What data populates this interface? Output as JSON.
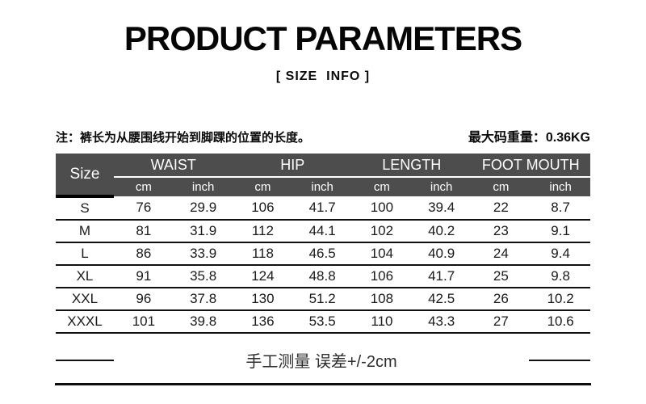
{
  "page": {
    "title": "PRODUCT PARAMETERS",
    "subtitle": "[ SIZE  INFO ]"
  },
  "notes": {
    "measure_note": "注：裤长为从腰围线开始到脚踝的位置的长度。",
    "weight_note": "最大码重量：0.36KG",
    "footer_note": "手工测量 误差+/-2cm"
  },
  "size_table": {
    "size_col_label": "Size",
    "groups": [
      "WAIST",
      "HIP",
      "LENGTH",
      "FOOT MOUTH"
    ],
    "unit_labels": [
      "cm",
      "inch",
      "cm",
      "inch",
      "cm",
      "inch",
      "cm",
      "inch"
    ],
    "rows": [
      {
        "size": "S",
        "values": [
          "76",
          "29.9",
          "106",
          "41.7",
          "100",
          "39.4",
          "22",
          "8.7"
        ]
      },
      {
        "size": "M",
        "values": [
          "81",
          "31.9",
          "112",
          "44.1",
          "102",
          "40.2",
          "23",
          "9.1"
        ]
      },
      {
        "size": "L",
        "values": [
          "86",
          "33.9",
          "118",
          "46.5",
          "104",
          "40.9",
          "24",
          "9.4"
        ]
      },
      {
        "size": "XL",
        "values": [
          "91",
          "35.8",
          "124",
          "48.8",
          "106",
          "41.7",
          "25",
          "9.8"
        ]
      },
      {
        "size": "XXL",
        "values": [
          "96",
          "37.8",
          "130",
          "51.2",
          "108",
          "42.5",
          "26",
          "10.2"
        ]
      },
      {
        "size": "XXXL",
        "values": [
          "101",
          "39.8",
          "136",
          "53.5",
          "110",
          "43.3",
          "27",
          "10.6"
        ]
      }
    ]
  },
  "colors": {
    "header_bg": "#4d4d4d",
    "header_text": "#ffffff",
    "row_line": "#111111"
  }
}
